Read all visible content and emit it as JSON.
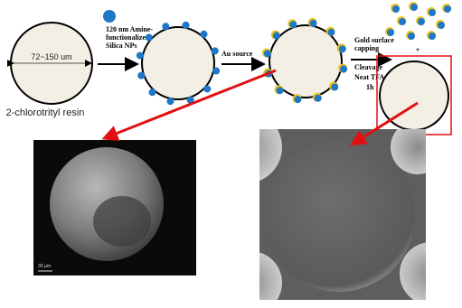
{
  "labels": {
    "diameter": "72~150 um",
    "resin": "2-chlorotrityl resin",
    "silica": [
      "120 nm Amine-",
      "functionalized",
      "Silica NPs"
    ],
    "au": "Au source",
    "gold": [
      "Gold surface",
      "capping"
    ],
    "plus": "+",
    "cleavage": [
      "Cleavage",
      "Neat TFA",
      "1h"
    ],
    "scale": "30 µm"
  }
}
